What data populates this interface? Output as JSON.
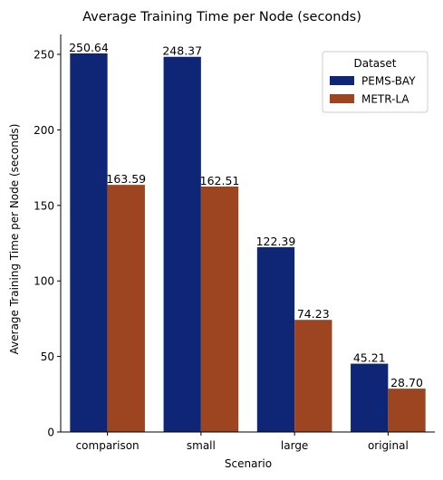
{
  "chart_data": {
    "type": "bar",
    "title": "Average Training Time per Node (seconds)",
    "xlabel": "Scenario",
    "ylabel": "Average Training Time per Node (seconds)",
    "categories": [
      "comparison",
      "small",
      "large",
      "original"
    ],
    "series": [
      {
        "name": "PEMS-BAY",
        "color": "#0f2575",
        "values": [
          250.64,
          248.37,
          122.39,
          45.21
        ],
        "labels": [
          "250.64",
          "248.37",
          "122.39",
          "45.21"
        ]
      },
      {
        "name": "METR-LA",
        "color": "#9c4520",
        "values": [
          163.59,
          162.51,
          74.23,
          28.7
        ],
        "labels": [
          "163.59",
          "162.51",
          "74.23",
          "28.70"
        ]
      }
    ],
    "ylim": [
      0,
      263.2
    ],
    "yticks": [
      0,
      50,
      100,
      150,
      200,
      250
    ],
    "legend": {
      "title": "Dataset",
      "placement": "top-right"
    },
    "grid": false
  }
}
